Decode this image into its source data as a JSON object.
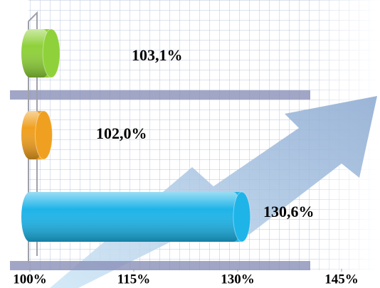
{
  "chart_data": {
    "type": "bar",
    "orientation": "horizontal",
    "categories": [
      null,
      null,
      null
    ],
    "values": [
      103.1,
      102.0,
      130.6
    ],
    "value_labels": [
      "103,1%",
      "102,0%",
      "130,6%"
    ],
    "colors": [
      "#8fd13a",
      "#f0a020",
      "#1eb4e8"
    ],
    "xlim": [
      100,
      145
    ],
    "xticks": [
      {
        "value": 100,
        "label": "100%"
      },
      {
        "value": 115,
        "label": "115%"
      },
      {
        "value": 130,
        "label": "130%"
      },
      {
        "value": 145,
        "label": "145%"
      }
    ]
  }
}
